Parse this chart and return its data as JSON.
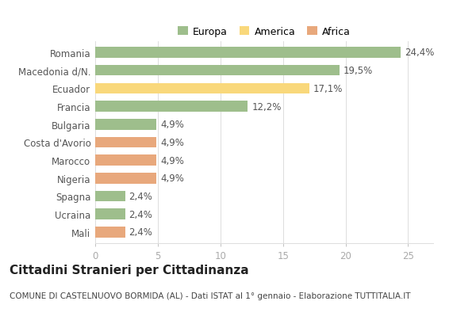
{
  "title": "Cittadini Stranieri per Cittadinanza",
  "subtitle": "COMUNE DI CASTELNUOVO BORMIDA (AL) - Dati ISTAT al 1° gennaio - Elaborazione TUTTITALIA.IT",
  "categories": [
    "Romania",
    "Macedonia d/N.",
    "Ecuador",
    "Francia",
    "Bulgaria",
    "Costa d'Avorio",
    "Marocco",
    "Nigeria",
    "Spagna",
    "Ucraina",
    "Mali"
  ],
  "values": [
    24.4,
    19.5,
    17.1,
    12.2,
    4.9,
    4.9,
    4.9,
    4.9,
    2.4,
    2.4,
    2.4
  ],
  "labels": [
    "24,4%",
    "19,5%",
    "17,1%",
    "12,2%",
    "4,9%",
    "4,9%",
    "4,9%",
    "4,9%",
    "2,4%",
    "2,4%",
    "2,4%"
  ],
  "colors": [
    "#9ebe8c",
    "#9ebe8c",
    "#f9d87b",
    "#9ebe8c",
    "#9ebe8c",
    "#e8a87c",
    "#e8a87c",
    "#e8a87c",
    "#9ebe8c",
    "#9ebe8c",
    "#e8a87c"
  ],
  "legend": [
    {
      "label": "Europa",
      "color": "#9ebe8c"
    },
    {
      "label": "America",
      "color": "#f9d87b"
    },
    {
      "label": "Africa",
      "color": "#e8a87c"
    }
  ],
  "xlim": [
    0,
    27
  ],
  "xticks": [
    0,
    5,
    10,
    15,
    20,
    25
  ],
  "background_color": "#ffffff",
  "bar_height": 0.6,
  "label_fontsize": 8.5,
  "ytick_fontsize": 8.5,
  "xtick_fontsize": 8.5,
  "title_fontsize": 11,
  "subtitle_fontsize": 7.5
}
